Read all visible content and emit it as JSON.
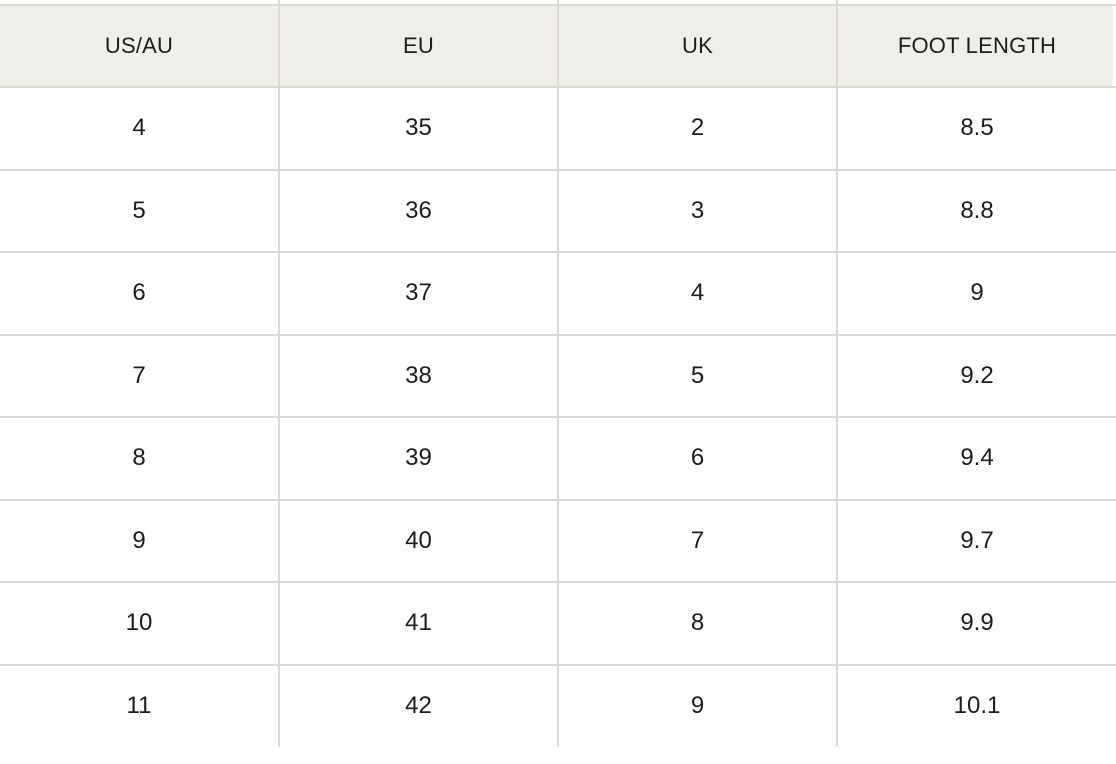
{
  "table": {
    "name": "shoe-size-conversion-chart",
    "columns": [
      "US/AU",
      "EU",
      "UK",
      "FOOT LENGTH"
    ],
    "rows": [
      [
        "4",
        "35",
        "2",
        "8.5"
      ],
      [
        "5",
        "36",
        "3",
        "8.8"
      ],
      [
        "6",
        "37",
        "4",
        "9"
      ],
      [
        "7",
        "38",
        "5",
        "9.2"
      ],
      [
        "8",
        "39",
        "6",
        "9.4"
      ],
      [
        "9",
        "40",
        "7",
        "9.7"
      ],
      [
        "10",
        "41",
        "8",
        "9.9"
      ],
      [
        "11",
        "42",
        "9",
        "10.1"
      ]
    ]
  },
  "chart_data": {
    "type": "table",
    "title": "",
    "columns": [
      "US/AU",
      "EU",
      "UK",
      "FOOT LENGTH"
    ],
    "rows": [
      [
        4,
        35,
        2,
        8.5
      ],
      [
        5,
        36,
        3,
        8.8
      ],
      [
        6,
        37,
        4,
        9
      ],
      [
        7,
        38,
        5,
        9.2
      ],
      [
        8,
        39,
        6,
        9.4
      ],
      [
        9,
        40,
        7,
        9.7
      ],
      [
        10,
        41,
        8,
        9.9
      ],
      [
        11,
        42,
        9,
        10.1
      ]
    ],
    "layout": {
      "header_row": true,
      "gridlines": "horizontal-full-width, vertical-between-columns-only",
      "cell_alignment": "center",
      "clipped_last_row": true
    }
  },
  "colors": {
    "header_bg": "#efeee9",
    "border": "#dcdad2",
    "text": "#1c1c1e",
    "background": "#ffffff"
  }
}
